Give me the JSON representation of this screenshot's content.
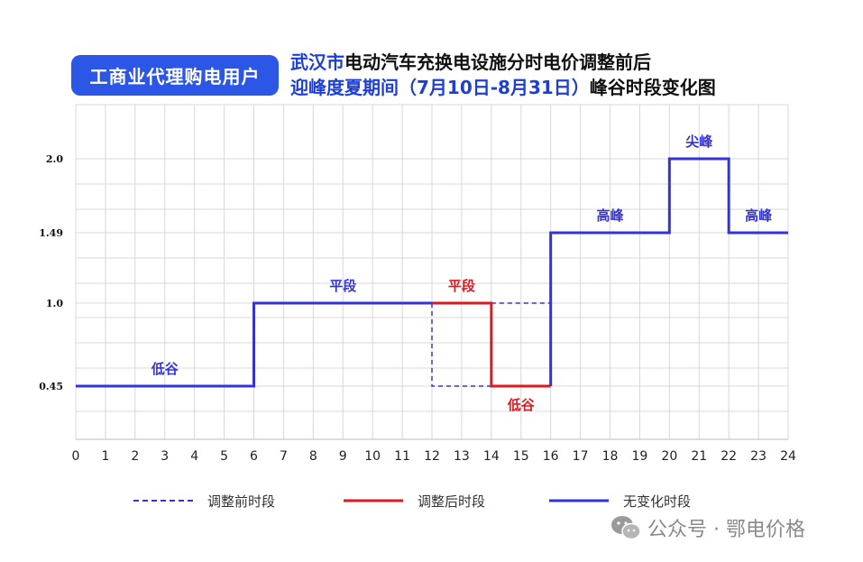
{
  "badge": {
    "text": "工商业代理购电用户"
  },
  "title": {
    "line1_city": "武汉市",
    "line1_rest": "电动汽车充换电设施分时电价调整前后",
    "line2_highlight": "迎峰度夏期间（7月10日-8月31日）",
    "line2_rest": "峰谷时段变化图"
  },
  "colors": {
    "unchanged": "#3333dd",
    "after": "#e0181f",
    "before": "#3333dd",
    "grid": "#d8d8d8",
    "badge": "#2b56e6"
  },
  "chart_data": {
    "type": "line",
    "step": true,
    "x_ticks": [
      0,
      1,
      2,
      3,
      4,
      5,
      6,
      7,
      8,
      9,
      10,
      11,
      12,
      13,
      14,
      15,
      16,
      17,
      18,
      19,
      20,
      21,
      22,
      23,
      24
    ],
    "y_ticks": [
      0.45,
      1.0,
      1.49,
      2.0
    ],
    "y_tick_labels": [
      "0.45",
      "1.0",
      "1.49",
      "2.0"
    ],
    "xlim": [
      0,
      24
    ],
    "grid": true,
    "legend_position": "bottom",
    "series": [
      {
        "name": "调整前时段",
        "style": "dashed",
        "color": "#3333dd",
        "segments": [
          {
            "x": [
              12,
              12,
              14
            ],
            "y": [
              1.0,
              0.45,
              0.45
            ]
          },
          {
            "x": [
              14,
              16,
              16
            ],
            "y": [
              1.0,
              1.0,
              1.49
            ]
          }
        ]
      },
      {
        "name": "调整后时段",
        "style": "solid",
        "color": "#e0181f",
        "segments": [
          {
            "x": [
              12,
              14,
              14,
              16
            ],
            "y": [
              1.0,
              1.0,
              0.45,
              0.45
            ]
          }
        ]
      },
      {
        "name": "无变化时段",
        "style": "solid",
        "color": "#3333dd",
        "segments": [
          {
            "x": [
              0,
              6,
              6,
              12
            ],
            "y": [
              0.45,
              0.45,
              1.0,
              1.0
            ]
          },
          {
            "x": [
              16,
              16,
              20,
              20,
              22,
              22,
              24
            ],
            "y": [
              0.45,
              1.49,
              1.49,
              2.0,
              2.0,
              1.49,
              1.49
            ]
          }
        ]
      }
    ],
    "annotations": [
      {
        "text": "低谷",
        "x": 3,
        "y": 0.45,
        "color": "#3333dd"
      },
      {
        "text": "平段",
        "x": 9,
        "y": 1.0,
        "color": "#3333dd"
      },
      {
        "text": "平段",
        "x": 13,
        "y": 1.0,
        "color": "#e0181f"
      },
      {
        "text": "低谷",
        "x": 15,
        "y": 0.45,
        "color": "#e0181f",
        "below": true
      },
      {
        "text": "高峰",
        "x": 18,
        "y": 1.49,
        "color": "#3333dd"
      },
      {
        "text": "尖峰",
        "x": 21,
        "y": 2.0,
        "color": "#3333dd"
      },
      {
        "text": "高峰",
        "x": 23,
        "y": 1.49,
        "color": "#3333dd"
      }
    ]
  },
  "watermark": {
    "text": "公众号 · 鄂电价格"
  }
}
